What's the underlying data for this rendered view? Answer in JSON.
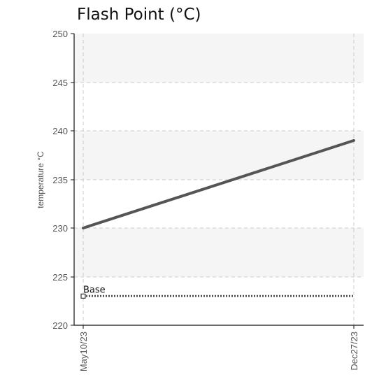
{
  "chart_data": {
    "type": "line",
    "title": "Flash Point (°C)",
    "xlabel": "",
    "ylabel": "temperature °C",
    "categories": [
      "May10/23",
      "Dec27/23"
    ],
    "ylim": [
      220,
      250
    ],
    "yticks": [
      "250",
      "245",
      "240",
      "235",
      "230",
      "225",
      "220"
    ],
    "grid": true,
    "series": [
      {
        "values": [
          230,
          239
        ],
        "color": "#555555"
      },
      {
        "name": "Base",
        "values": [
          223,
          223
        ],
        "color": "#555555",
        "style": "dotted"
      }
    ]
  }
}
